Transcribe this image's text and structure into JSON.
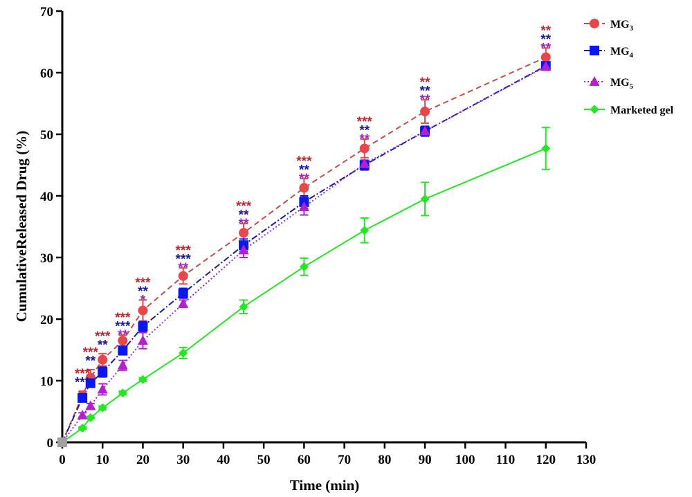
{
  "chart_data": {
    "type": "line",
    "xlabel": "Time (min)",
    "ylabel": "CumulativeReleased Drug (%)",
    "xlim": [
      0,
      130
    ],
    "ylim": [
      0,
      70
    ],
    "xticks": [
      0,
      10,
      20,
      30,
      40,
      50,
      60,
      70,
      80,
      90,
      100,
      110,
      120,
      130
    ],
    "yticks": [
      0,
      10,
      20,
      30,
      40,
      50,
      60,
      70
    ],
    "grid": false,
    "legend_position": "top-right",
    "x": [
      0,
      5,
      7,
      10,
      15,
      20,
      30,
      45,
      60,
      75,
      90,
      120
    ],
    "series": [
      {
        "name": "MG3",
        "label_base": "MG",
        "label_sub": "3",
        "color": "#e8474a",
        "line_color": "#c0504d",
        "dash": "8,5",
        "marker": "circle",
        "values": [
          0,
          7.6,
          10.5,
          13.4,
          16.5,
          21.4,
          27.0,
          34.0,
          41.3,
          47.7,
          53.7,
          62.5
        ],
        "errors": [
          0.3,
          0.7,
          1.3,
          1.0,
          0.9,
          1.7,
          1.3,
          1.5,
          1.5,
          1.5,
          1.9,
          1.5
        ]
      },
      {
        "name": "MG4",
        "label_base": "MG",
        "label_sub": "4",
        "color": "#0a17f0",
        "line_color": "#1a1a9e",
        "dash": "9,3,2,3",
        "marker": "square",
        "values": [
          0,
          7.2,
          9.6,
          11.4,
          14.9,
          18.8,
          24.2,
          32.0,
          39.0,
          45.0,
          50.5,
          61.1
        ],
        "errors": [
          0.3,
          0.5,
          0.6,
          0.8,
          0.7,
          0.8,
          0.8,
          1.0,
          1.0,
          0.8,
          0.8,
          0.6
        ]
      },
      {
        "name": "MG5",
        "label_base": "MG",
        "label_sub": "5",
        "color": "#b51fd1",
        "line_color": "#8a2be2",
        "dash": "2,3",
        "marker": "triangle",
        "values": [
          0,
          4.4,
          5.9,
          8.6,
          12.5,
          16.5,
          22.5,
          31.2,
          38.2,
          45.2,
          50.5,
          61.0
        ],
        "errors": [
          0.2,
          0.4,
          0.4,
          0.9,
          0.8,
          1.3,
          0.6,
          1.2,
          1.3,
          0.6,
          0.6,
          0.6
        ]
      },
      {
        "name": "Marketed gel",
        "label_base": "Marketed gel",
        "label_sub": "",
        "color": "#22e822",
        "line_color": "#22e822",
        "dash": "",
        "marker": "diamond",
        "values": [
          0,
          2.3,
          4.0,
          5.6,
          8.0,
          10.2,
          14.5,
          22.0,
          28.5,
          34.4,
          39.5,
          47.7
        ],
        "errors": [
          0.1,
          0.2,
          0.2,
          0.3,
          0.3,
          0.3,
          0.9,
          1.1,
          1.4,
          2.0,
          2.7,
          3.4
        ]
      }
    ],
    "significance": [
      {
        "x": 5,
        "labels": [
          "***",
          "***",
          ""
        ]
      },
      {
        "x": 7,
        "labels": [
          "***",
          "**",
          ""
        ]
      },
      {
        "x": 10,
        "labels": [
          "***",
          "**",
          ""
        ]
      },
      {
        "x": 15,
        "labels": [
          "***",
          "***",
          "**"
        ]
      },
      {
        "x": 20,
        "labels": [
          "***",
          "**",
          "*"
        ]
      },
      {
        "x": 30,
        "labels": [
          "***",
          "***",
          "**"
        ]
      },
      {
        "x": 45,
        "labels": [
          "***",
          "**",
          "**"
        ]
      },
      {
        "x": 60,
        "labels": [
          "***",
          "**",
          "**"
        ]
      },
      {
        "x": 75,
        "labels": [
          "***",
          "**",
          "**"
        ]
      },
      {
        "x": 90,
        "labels": [
          "**",
          "**",
          "**"
        ]
      },
      {
        "x": 120,
        "labels": [
          "**",
          "**",
          "**"
        ]
      }
    ],
    "significance_colors": [
      "#c0262b",
      "#1a1aa8",
      "#a020c0"
    ]
  }
}
